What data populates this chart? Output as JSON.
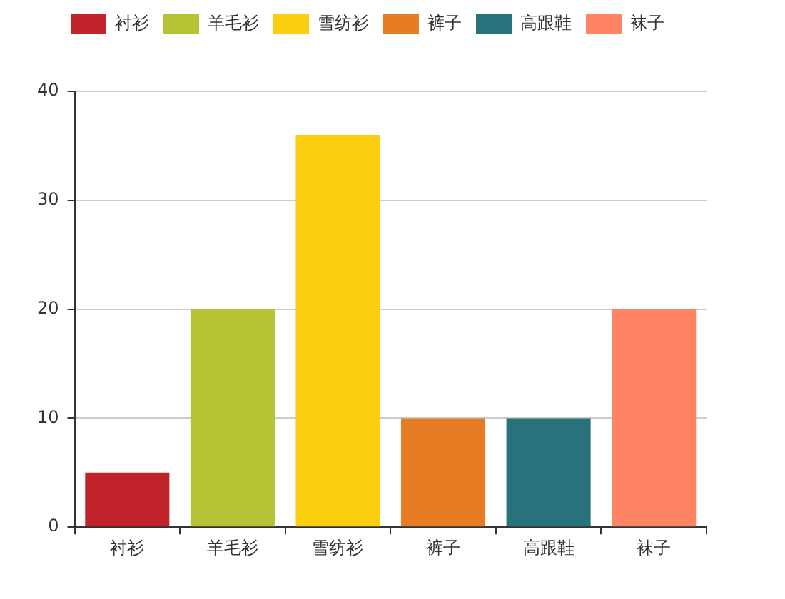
{
  "chart_data": {
    "type": "bar",
    "categories": [
      "衬衫",
      "羊毛衫",
      "雪纺衫",
      "裤子",
      "高跟鞋",
      "袜子"
    ],
    "series": [
      {
        "name": "衬衫",
        "color": "#c1232b",
        "values": [
          5,
          null,
          null,
          null,
          null,
          null
        ]
      },
      {
        "name": "羊毛衫",
        "color": "#b5c334",
        "values": [
          null,
          20,
          null,
          null,
          null,
          null
        ]
      },
      {
        "name": "雪纺衫",
        "color": "#fcce10",
        "values": [
          null,
          null,
          36,
          null,
          null,
          null
        ]
      },
      {
        "name": "裤子",
        "color": "#e87c25",
        "values": [
          null,
          null,
          null,
          10,
          null,
          null
        ]
      },
      {
        "name": "高跟鞋",
        "color": "#27727b",
        "values": [
          null,
          null,
          null,
          null,
          10,
          null
        ]
      },
      {
        "name": "袜子",
        "color": "#fe8463",
        "values": [
          null,
          null,
          null,
          null,
          null,
          20
        ]
      }
    ],
    "ylim": [
      0,
      40
    ],
    "yticks": [
      0,
      10,
      20,
      30,
      40
    ],
    "grid": "y",
    "legend": "top"
  }
}
